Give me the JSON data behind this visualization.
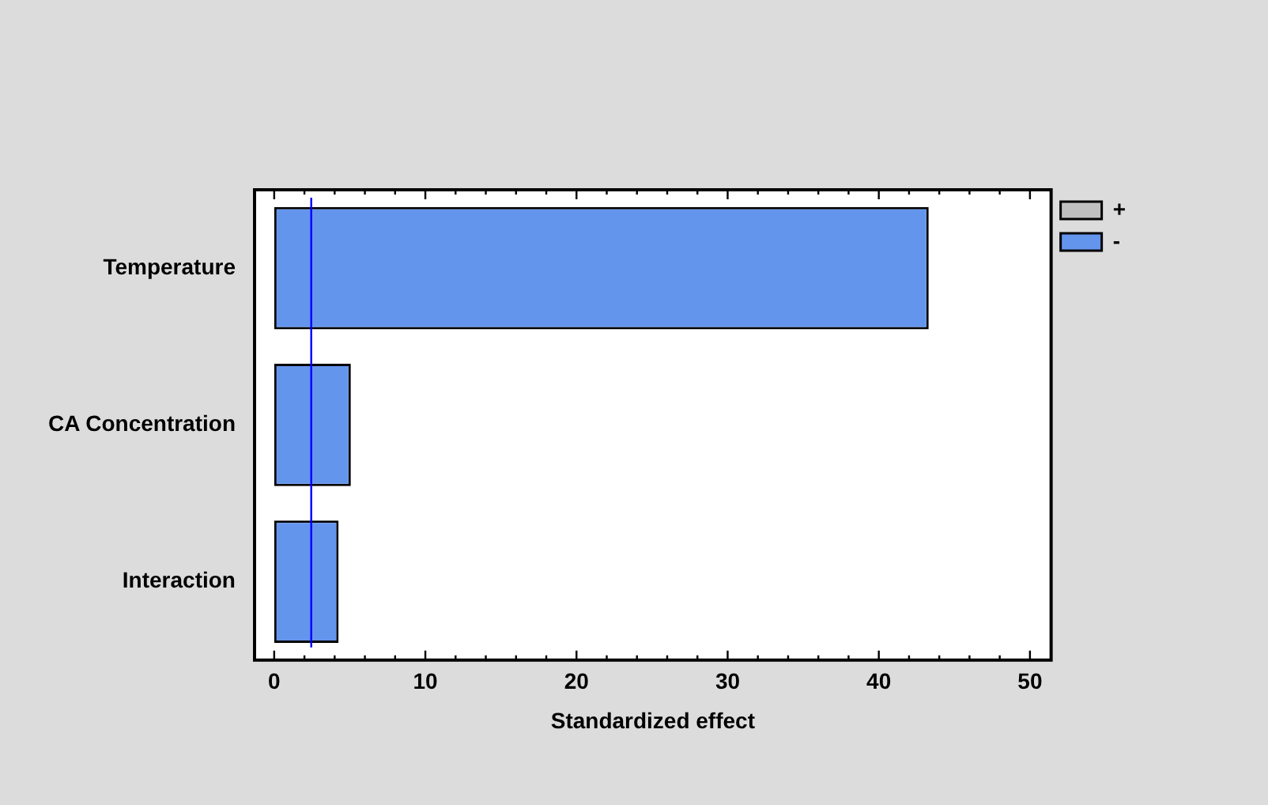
{
  "chart_data": {
    "type": "bar",
    "orientation": "horizontal",
    "categories": [
      "Temperature",
      "CA Concentration",
      "Interaction"
    ],
    "series": [
      {
        "name": "+",
        "color": "#c0c0c0",
        "values": [
          null,
          null,
          null
        ]
      },
      {
        "name": "-",
        "color": "#6495ed",
        "values": [
          43.3,
          5.07,
          4.26
        ]
      }
    ],
    "xlabel": "Standardized effect",
    "xlim": [
      -1.3,
      51.4
    ],
    "xticks": [
      0,
      {
        "value": 2,
        "label": null
      },
      {
        "value": 4,
        "label": null
      },
      {
        "value": 6,
        "label": null
      },
      {
        "value": 8,
        "label": null
      },
      10,
      {
        "value": 12,
        "label": null
      },
      {
        "value": 14,
        "label": null
      },
      {
        "value": 16,
        "label": null
      },
      {
        "value": 18,
        "label": null
      },
      20,
      {
        "value": 22,
        "label": null
      },
      {
        "value": 24,
        "label": null
      },
      {
        "value": 26,
        "label": null
      },
      {
        "value": 28,
        "label": null
      },
      30,
      {
        "value": 32,
        "label": null
      },
      {
        "value": 34,
        "label": null
      },
      {
        "value": 36,
        "label": null
      },
      {
        "value": 38,
        "label": null
      },
      40,
      {
        "value": 42,
        "label": null
      },
      {
        "value": 44,
        "label": null
      },
      {
        "value": 46,
        "label": null
      },
      {
        "value": 48,
        "label": null
      },
      50
    ],
    "ref_lines": [
      {
        "axis": "x",
        "value": 2.45,
        "color": "#0000ff"
      }
    ],
    "grid": false,
    "legend": "top right"
  }
}
